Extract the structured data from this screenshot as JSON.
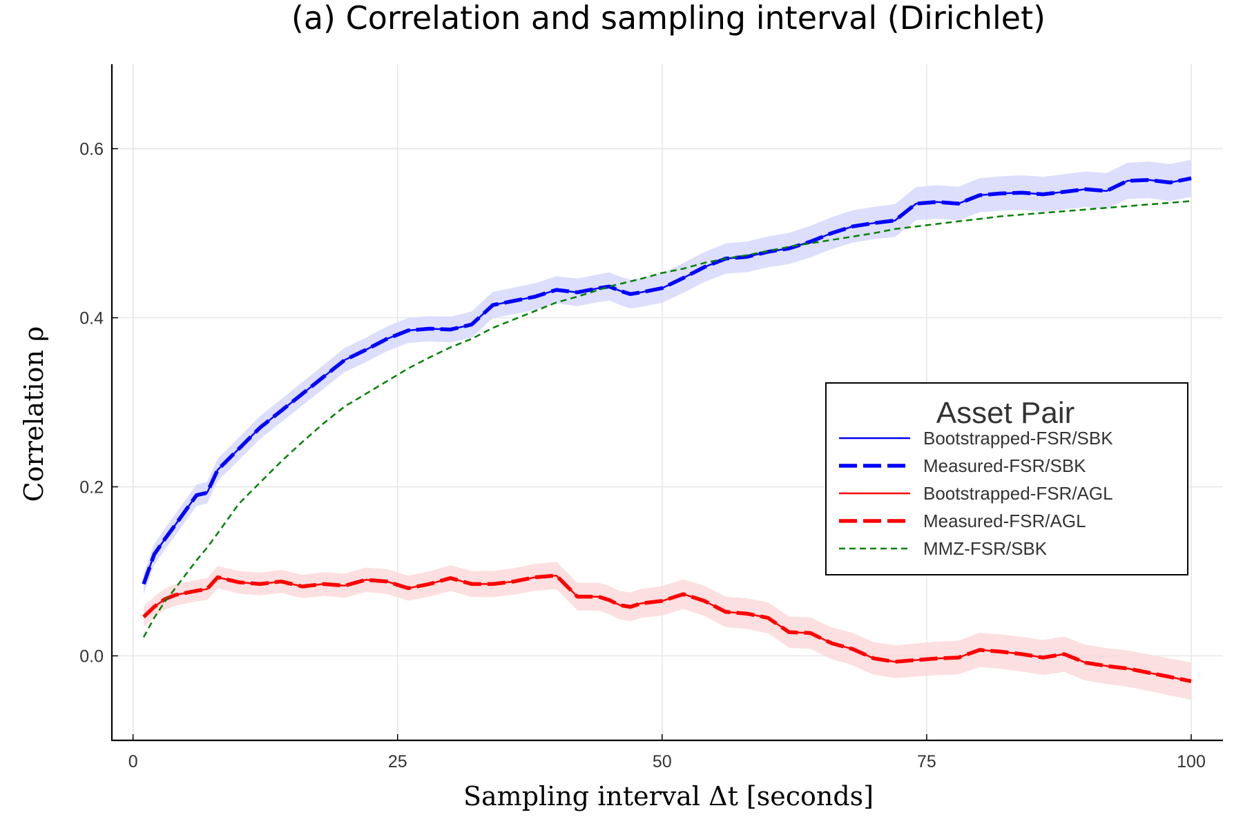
{
  "chart_data": {
    "type": "line",
    "title": "(a) Correlation and sampling interval (Dirichlet)",
    "xlabel": "Sampling interval Δt [seconds]",
    "ylabel": "Correlation ρ",
    "xlim": [
      -2,
      103
    ],
    "ylim": [
      -0.1,
      0.7
    ],
    "xticks": [
      0,
      25,
      50,
      75,
      100
    ],
    "yticks": [
      0.0,
      0.2,
      0.4,
      0.6
    ],
    "xtick_labels": [
      "0",
      "25",
      "50",
      "75",
      "100"
    ],
    "ytick_labels": [
      "0.0",
      "0.2",
      "0.4",
      "0.6"
    ],
    "grid": true,
    "legend": {
      "title": "Asset Pair",
      "position": "right-center"
    },
    "colors": {
      "blue": "#0000ff",
      "red": "#ff0000",
      "green": "#008000",
      "blue_band": "#d6d8fb",
      "red_band": "#fcd9db"
    },
    "x": [
      1,
      2,
      3,
      4,
      6,
      7,
      8,
      10,
      12,
      14,
      16,
      18,
      20,
      22,
      24,
      26,
      28,
      30,
      32,
      34,
      36,
      38,
      40,
      42,
      44,
      45,
      46,
      47,
      48,
      50,
      52,
      54,
      56,
      58,
      60,
      62,
      64,
      66,
      68,
      70,
      72,
      74,
      76,
      78,
      80,
      82,
      84,
      86,
      88,
      90,
      92,
      94,
      96,
      98,
      100
    ],
    "band_halfwidth": [
      0.012,
      0.022
    ],
    "series": [
      {
        "name": "Bootstrapped-FSR/SBK",
        "style": "solid-thin",
        "color": "#0000ff",
        "band": true,
        "values": [
          0.085,
          0.12,
          0.138,
          0.155,
          0.19,
          0.193,
          0.22,
          0.245,
          0.27,
          0.29,
          0.31,
          0.33,
          0.35,
          0.362,
          0.375,
          0.385,
          0.387,
          0.386,
          0.392,
          0.415,
          0.42,
          0.425,
          0.433,
          0.43,
          0.435,
          0.437,
          0.432,
          0.428,
          0.43,
          0.435,
          0.447,
          0.46,
          0.47,
          0.472,
          0.478,
          0.482,
          0.49,
          0.5,
          0.508,
          0.512,
          0.515,
          0.535,
          0.537,
          0.535,
          0.545,
          0.547,
          0.548,
          0.546,
          0.549,
          0.552,
          0.55,
          0.562,
          0.563,
          0.56,
          0.565
        ]
      },
      {
        "name": "Measured-FSR/SBK",
        "style": "dashed-thick",
        "color": "#0000ff",
        "band": false,
        "values": [
          0.085,
          0.12,
          0.138,
          0.155,
          0.19,
          0.193,
          0.22,
          0.245,
          0.27,
          0.29,
          0.31,
          0.33,
          0.35,
          0.362,
          0.375,
          0.385,
          0.387,
          0.386,
          0.392,
          0.415,
          0.42,
          0.425,
          0.433,
          0.43,
          0.435,
          0.437,
          0.432,
          0.428,
          0.43,
          0.435,
          0.447,
          0.46,
          0.47,
          0.472,
          0.478,
          0.482,
          0.49,
          0.5,
          0.508,
          0.512,
          0.515,
          0.535,
          0.537,
          0.535,
          0.545,
          0.547,
          0.548,
          0.546,
          0.549,
          0.552,
          0.55,
          0.562,
          0.563,
          0.56,
          0.565
        ]
      },
      {
        "name": "Bootstrapped-FSR/AGL",
        "style": "solid-thin",
        "color": "#ff0000",
        "band": true,
        "values": [
          0.046,
          0.058,
          0.067,
          0.072,
          0.077,
          0.079,
          0.093,
          0.087,
          0.085,
          0.088,
          0.082,
          0.085,
          0.083,
          0.09,
          0.088,
          0.08,
          0.085,
          0.092,
          0.085,
          0.085,
          0.088,
          0.093,
          0.095,
          0.07,
          0.07,
          0.066,
          0.06,
          0.058,
          0.062,
          0.065,
          0.073,
          0.065,
          0.052,
          0.05,
          0.045,
          0.028,
          0.027,
          0.015,
          0.008,
          -0.003,
          -0.007,
          -0.005,
          -0.003,
          -0.002,
          0.007,
          0.005,
          0.002,
          -0.002,
          0.002,
          -0.008,
          -0.012,
          -0.015,
          -0.02,
          -0.025,
          -0.03
        ]
      },
      {
        "name": "Measured-FSR/AGL",
        "style": "dashed-thick",
        "color": "#ff0000",
        "band": false,
        "values": [
          0.046,
          0.058,
          0.067,
          0.072,
          0.077,
          0.079,
          0.093,
          0.087,
          0.085,
          0.088,
          0.082,
          0.085,
          0.083,
          0.09,
          0.088,
          0.08,
          0.085,
          0.092,
          0.085,
          0.085,
          0.088,
          0.093,
          0.095,
          0.07,
          0.07,
          0.066,
          0.06,
          0.058,
          0.062,
          0.065,
          0.073,
          0.065,
          0.052,
          0.05,
          0.045,
          0.028,
          0.027,
          0.015,
          0.008,
          -0.003,
          -0.007,
          -0.005,
          -0.003,
          -0.002,
          0.007,
          0.005,
          0.002,
          -0.002,
          0.002,
          -0.008,
          -0.012,
          -0.015,
          -0.02,
          -0.025,
          -0.03
        ]
      },
      {
        "name": "MMZ-FSR/SBK",
        "style": "dashed-thin",
        "color": "#008000",
        "band": false,
        "values": [
          0.022,
          0.045,
          0.064,
          0.08,
          0.113,
          0.128,
          0.145,
          0.18,
          0.205,
          0.23,
          0.253,
          0.275,
          0.295,
          0.31,
          0.325,
          0.34,
          0.353,
          0.365,
          0.375,
          0.388,
          0.398,
          0.408,
          0.418,
          0.425,
          0.433,
          0.437,
          0.44,
          0.443,
          0.446,
          0.453,
          0.458,
          0.465,
          0.47,
          0.474,
          0.479,
          0.484,
          0.488,
          0.492,
          0.496,
          0.5,
          0.505,
          0.508,
          0.511,
          0.514,
          0.517,
          0.52,
          0.522,
          0.524,
          0.526,
          0.528,
          0.53,
          0.532,
          0.534,
          0.536,
          0.538
        ]
      }
    ]
  }
}
